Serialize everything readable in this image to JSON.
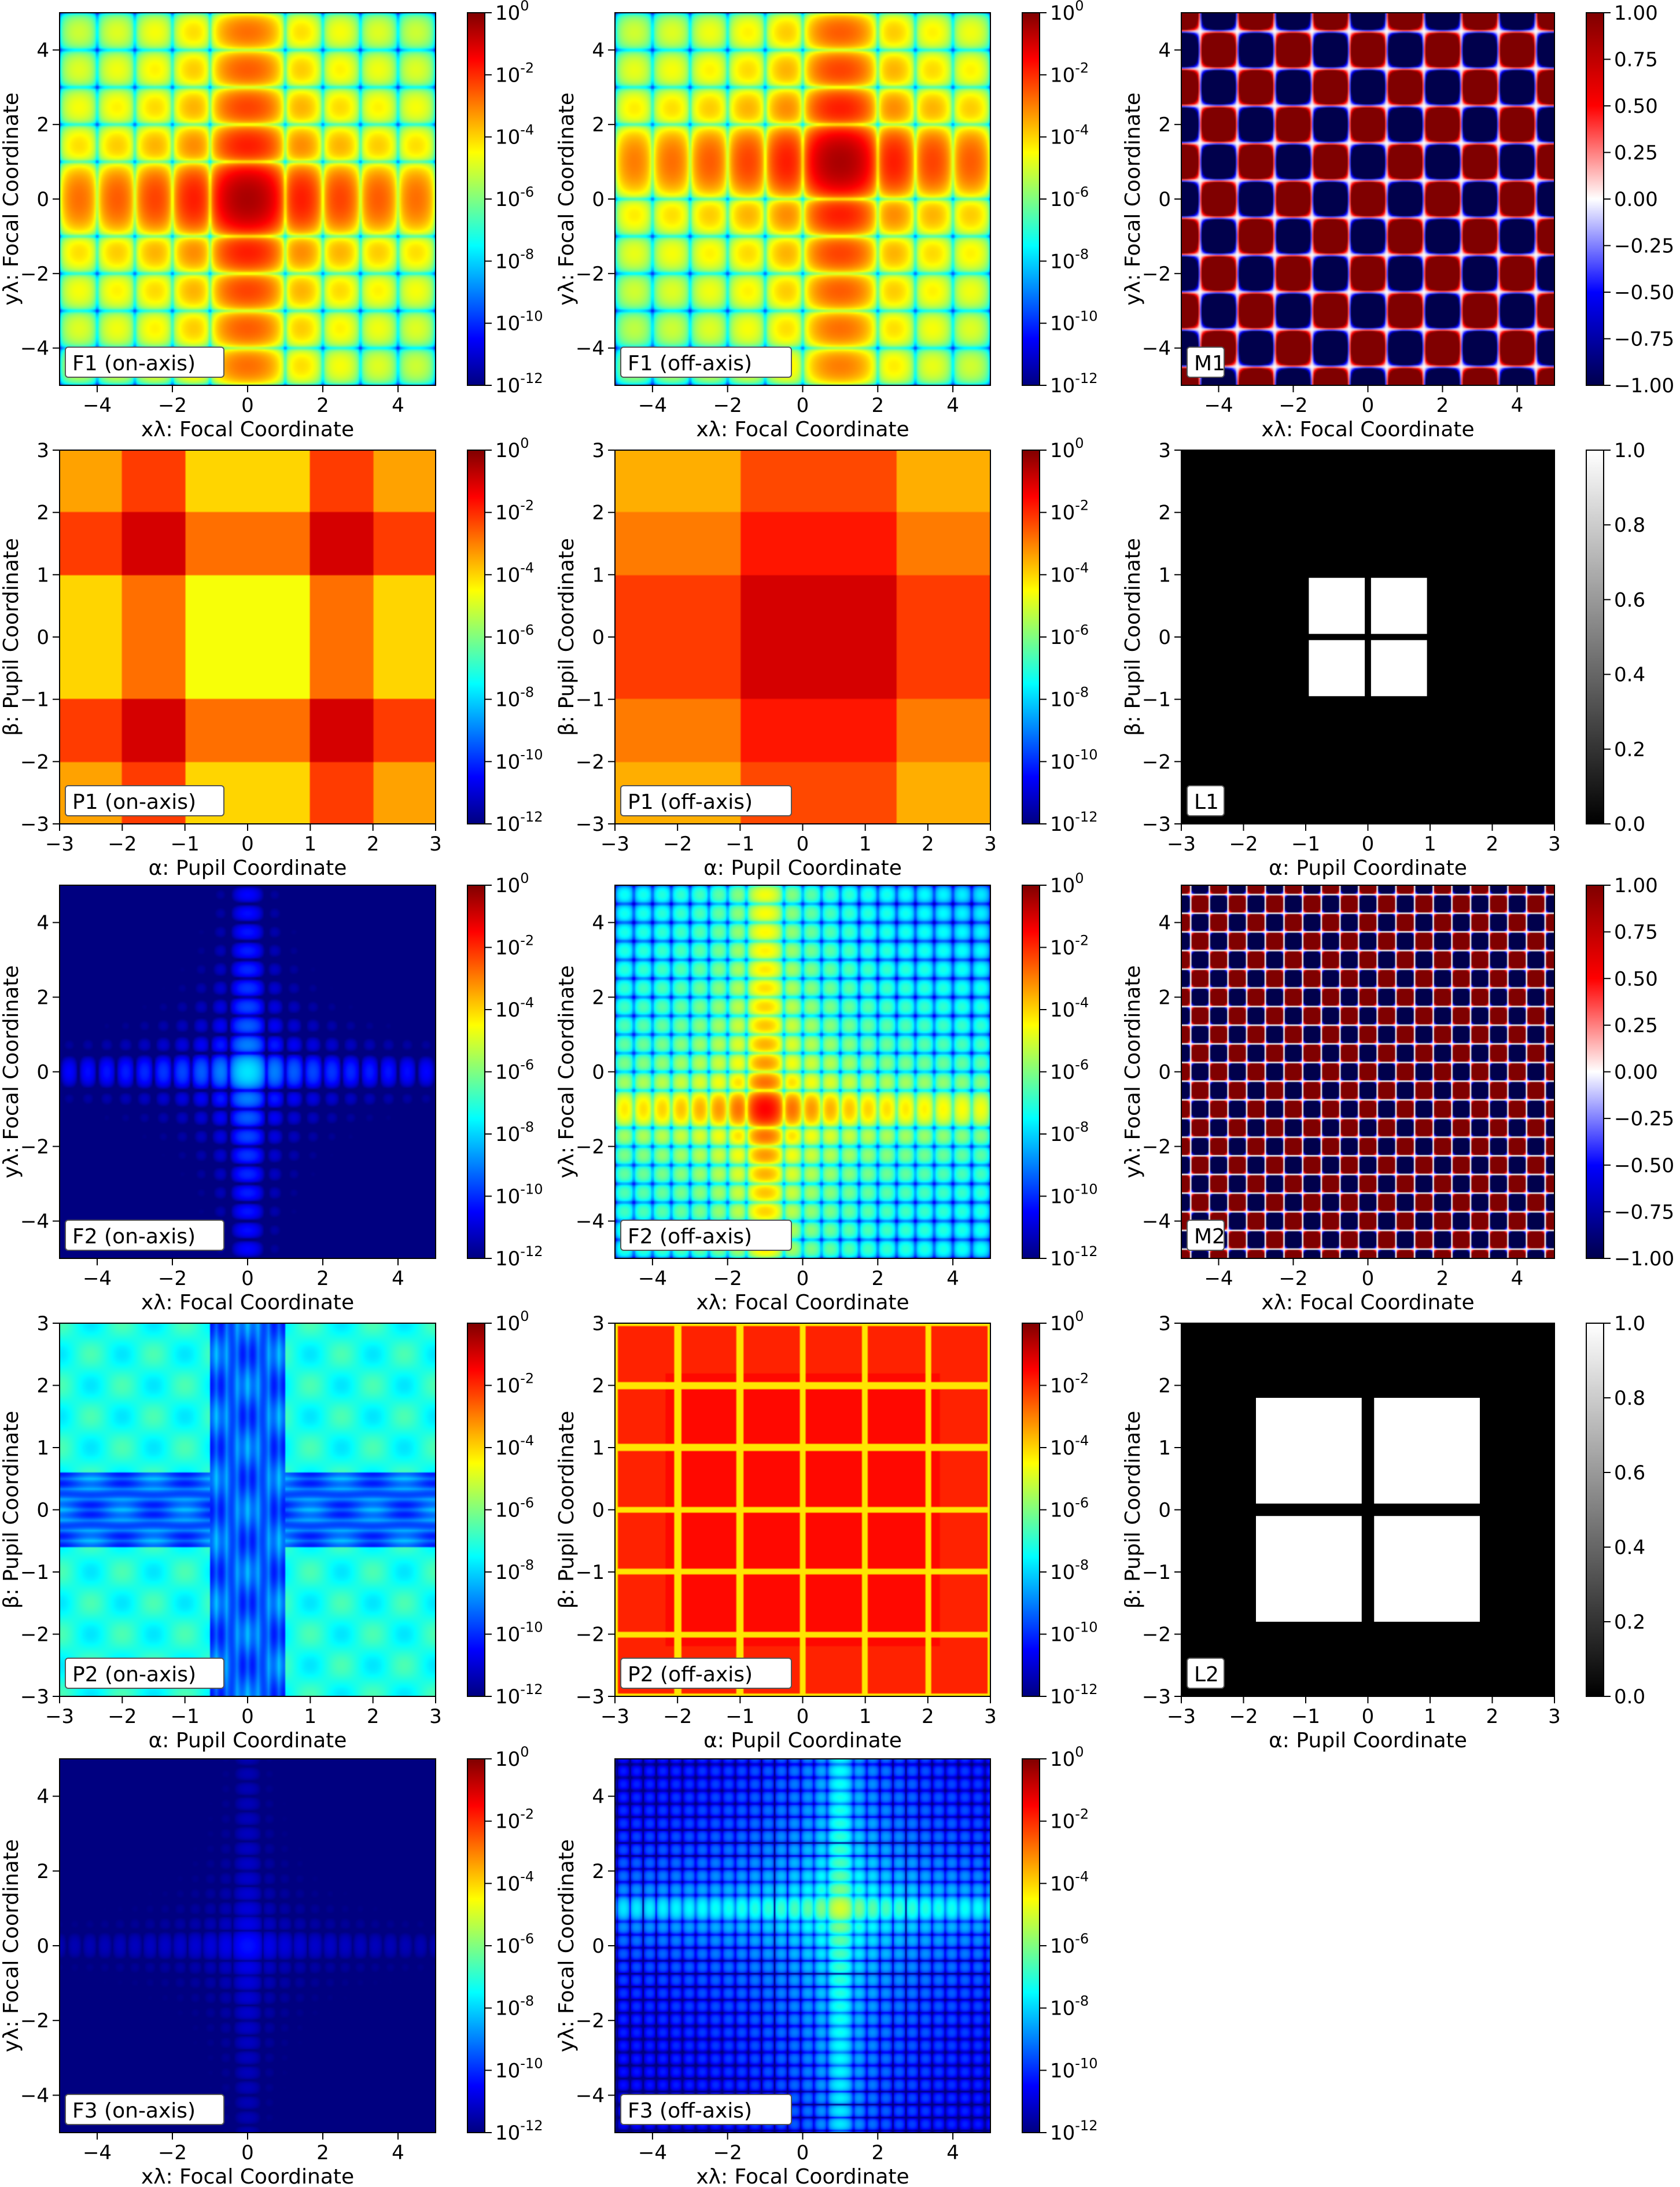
{
  "chart_data": [
    {
      "id": "F1on",
      "type": "heatmap",
      "label": "F1 (on-axis)",
      "xlabel": "xλ: Focal Coordinate",
      "ylabel": "yλ: Focal Coordinate",
      "xticks": [
        "−4",
        "−2",
        "0",
        "2",
        "4"
      ],
      "yticks": [
        "−4",
        "−2",
        "0",
        "2",
        "4"
      ],
      "xlim": [
        -5,
        5
      ],
      "ylim": [
        -5,
        5
      ],
      "colormap": "jet",
      "colorbar": {
        "scale": "log",
        "ticks": [
          [
            "0",
            "10",
            "0"
          ],
          [
            "1",
            "10",
            "-2"
          ],
          [
            "2",
            "10",
            "-4"
          ],
          [
            "3",
            "10",
            "-6"
          ],
          [
            "4",
            "10",
            "-8"
          ],
          [
            "5",
            "10",
            "-10"
          ],
          [
            "6",
            "10",
            "-12"
          ]
        ]
      },
      "pattern": {
        "kind": "sinc",
        "cx": 0,
        "cy": 0,
        "p": 1,
        "floor": -0.5
      }
    },
    {
      "id": "F1off",
      "type": "heatmap",
      "label": "F1 (off-axis)",
      "xlabel": "xλ: Focal Coordinate",
      "ylabel": "yλ: Focal Coordinate",
      "xticks": [
        "−4",
        "−2",
        "0",
        "2",
        "4"
      ],
      "yticks": [
        "−4",
        "−2",
        "0",
        "2",
        "4"
      ],
      "xlim": [
        -5,
        5
      ],
      "ylim": [
        -5,
        5
      ],
      "colormap": "jet",
      "colorbar": {
        "scale": "log",
        "ticks": [
          [
            "0",
            "10",
            "0"
          ],
          [
            "1",
            "10",
            "-2"
          ],
          [
            "2",
            "10",
            "-4"
          ],
          [
            "3",
            "10",
            "-6"
          ],
          [
            "4",
            "10",
            "-8"
          ],
          [
            "5",
            "10",
            "-10"
          ],
          [
            "6",
            "10",
            "-12"
          ]
        ]
      },
      "pattern": {
        "kind": "sinc",
        "cx": 1,
        "cy": 1,
        "p": 1,
        "floor": -0.5
      }
    },
    {
      "id": "M1",
      "type": "heatmap",
      "label": "M1",
      "xlabel": "xλ: Focal Coordinate",
      "ylabel": "yλ: Focal Coordinate",
      "xticks": [
        "−4",
        "−2",
        "0",
        "2",
        "4"
      ],
      "yticks": [
        "−4",
        "−2",
        "0",
        "2",
        "4"
      ],
      "xlim": [
        -5,
        5
      ],
      "ylim": [
        -5,
        5
      ],
      "colormap": "seismic",
      "colorbar": {
        "scale": "linear",
        "ticks": [
          [
            "0",
            "1.00"
          ],
          [
            "1",
            "0.75"
          ],
          [
            "2",
            "0.50"
          ],
          [
            "3",
            "0.25"
          ],
          [
            "4",
            "0.00"
          ],
          [
            "5",
            "−0.25"
          ],
          [
            "6",
            "−0.50"
          ],
          [
            "7",
            "−0.75"
          ],
          [
            "8",
            "−1.00"
          ]
        ]
      },
      "pattern": {
        "kind": "checker",
        "p": 1
      }
    },
    {
      "id": "P1on",
      "type": "heatmap",
      "label": "P1 (on-axis)",
      "xlabel": "α: Pupil Coordinate",
      "ylabel": "β: Pupil Coordinate",
      "xticks": [
        "−3",
        "−2",
        "−1",
        "0",
        "1",
        "2",
        "3"
      ],
      "yticks": [
        "−3",
        "−2",
        "−1",
        "0",
        "1",
        "2",
        "3"
      ],
      "xlim": [
        -3,
        3
      ],
      "ylim": [
        -3,
        3
      ],
      "colormap": "jet",
      "colorbar": {
        "scale": "log",
        "ticks": [
          [
            "0",
            "10",
            "0"
          ],
          [
            "1",
            "10",
            "-2"
          ],
          [
            "2",
            "10",
            "-4"
          ],
          [
            "3",
            "10",
            "-6"
          ],
          [
            "4",
            "10",
            "-8"
          ],
          [
            "5",
            "10",
            "-10"
          ],
          [
            "6",
            "10",
            "-12"
          ]
        ]
      },
      "pattern": {
        "kind": "pupil",
        "mode": "on",
        "floor": -5
      }
    },
    {
      "id": "P1off",
      "type": "heatmap",
      "label": "P1 (off-axis)",
      "xlabel": "α: Pupil Coordinate",
      "ylabel": "β: Pupil Coordinate",
      "xticks": [
        "−3",
        "−2",
        "−1",
        "0",
        "1",
        "2",
        "3"
      ],
      "yticks": [
        "−3",
        "−2",
        "−1",
        "0",
        "1",
        "2",
        "3"
      ],
      "xlim": [
        -3,
        3
      ],
      "ylim": [
        -3,
        3
      ],
      "colormap": "jet",
      "colorbar": {
        "scale": "log",
        "ticks": [
          [
            "0",
            "10",
            "0"
          ],
          [
            "1",
            "10",
            "-2"
          ],
          [
            "2",
            "10",
            "-4"
          ],
          [
            "3",
            "10",
            "-6"
          ],
          [
            "4",
            "10",
            "-8"
          ],
          [
            "5",
            "10",
            "-10"
          ],
          [
            "6",
            "10",
            "-12"
          ]
        ]
      },
      "pattern": {
        "kind": "pupil",
        "mode": "off",
        "floor": -5
      }
    },
    {
      "id": "L1",
      "type": "heatmap",
      "label": "L1",
      "xlabel": "α: Pupil Coordinate",
      "ylabel": "β: Pupil Coordinate",
      "xticks": [
        "−3",
        "−2",
        "−1",
        "0",
        "1",
        "2",
        "3"
      ],
      "yticks": [
        "−3",
        "−2",
        "−1",
        "0",
        "1",
        "2",
        "3"
      ],
      "xlim": [
        -3,
        3
      ],
      "ylim": [
        -3,
        3
      ],
      "colormap": "gray",
      "colorbar": {
        "scale": "linear",
        "ticks": [
          [
            "0",
            "1.0"
          ],
          [
            "1",
            "0.8"
          ],
          [
            "2",
            "0.6"
          ],
          [
            "3",
            "0.4"
          ],
          [
            "4",
            "0.2"
          ],
          [
            "5",
            "0.0"
          ]
        ]
      },
      "aperture": {
        "half_size": 0.95,
        "gap": 0.1
      }
    },
    {
      "id": "F2on",
      "type": "heatmap",
      "label": "F2 (on-axis)",
      "xlabel": "xλ: Focal Coordinate",
      "ylabel": "yλ: Focal Coordinate",
      "xticks": [
        "−4",
        "−2",
        "0",
        "2",
        "4"
      ],
      "yticks": [
        "−4",
        "−2",
        "0",
        "2",
        "4"
      ],
      "xlim": [
        -5,
        5
      ],
      "ylim": [
        -5,
        5
      ],
      "colormap": "jet",
      "colorbar": {
        "scale": "log",
        "ticks": [
          [
            "0",
            "10",
            "0"
          ],
          [
            "1",
            "10",
            "-2"
          ],
          [
            "2",
            "10",
            "-4"
          ],
          [
            "3",
            "10",
            "-6"
          ],
          [
            "4",
            "10",
            "-8"
          ],
          [
            "5",
            "10",
            "-10"
          ],
          [
            "6",
            "10",
            "-12"
          ]
        ]
      },
      "pattern": {
        "kind": "sinc",
        "cx": 0,
        "cy": 0,
        "p": 0.5,
        "floor": -7.8,
        "gain": 0.9
      }
    },
    {
      "id": "F2off",
      "type": "heatmap",
      "label": "F2 (off-axis)",
      "xlabel": "xλ: Focal Coordinate",
      "ylabel": "yλ: Focal Coordinate",
      "xticks": [
        "−4",
        "−2",
        "0",
        "2",
        "4"
      ],
      "yticks": [
        "−4",
        "−2",
        "0",
        "2",
        "4"
      ],
      "xlim": [
        -5,
        5
      ],
      "ylim": [
        -5,
        5
      ],
      "colormap": "jet",
      "colorbar": {
        "scale": "log",
        "ticks": [
          [
            "0",
            "10",
            "0"
          ],
          [
            "1",
            "10",
            "-2"
          ],
          [
            "2",
            "10",
            "-4"
          ],
          [
            "3",
            "10",
            "-6"
          ],
          [
            "4",
            "10",
            "-8"
          ],
          [
            "5",
            "10",
            "-10"
          ],
          [
            "6",
            "10",
            "-12"
          ]
        ]
      },
      "pattern": {
        "kind": "sinc",
        "cx": -1,
        "cy": -1,
        "p": 0.5,
        "floor": -1.5
      }
    },
    {
      "id": "M2",
      "type": "heatmap",
      "label": "M2",
      "xlabel": "xλ: Focal Coordinate",
      "ylabel": "yλ: Focal Coordinate",
      "xticks": [
        "−4",
        "−2",
        "0",
        "2",
        "4"
      ],
      "yticks": [
        "−4",
        "−2",
        "0",
        "2",
        "4"
      ],
      "xlim": [
        -5,
        5
      ],
      "ylim": [
        -5,
        5
      ],
      "colormap": "seismic",
      "colorbar": {
        "scale": "linear",
        "ticks": [
          [
            "0",
            "1.00"
          ],
          [
            "1",
            "0.75"
          ],
          [
            "2",
            "0.50"
          ],
          [
            "3",
            "0.25"
          ],
          [
            "4",
            "0.00"
          ],
          [
            "5",
            "−0.25"
          ],
          [
            "6",
            "−0.50"
          ],
          [
            "7",
            "−0.75"
          ],
          [
            "8",
            "−1.00"
          ]
        ]
      },
      "pattern": {
        "kind": "checker",
        "p": 0.5
      }
    },
    {
      "id": "P2on",
      "type": "heatmap",
      "label": "P2 (on-axis)",
      "xlabel": "α: Pupil Coordinate",
      "ylabel": "β: Pupil Coordinate",
      "xticks": [
        "−3",
        "−2",
        "−1",
        "0",
        "1",
        "2",
        "3"
      ],
      "yticks": [
        "−3",
        "−2",
        "−1",
        "0",
        "1",
        "2",
        "3"
      ],
      "xlim": [
        -3,
        3
      ],
      "ylim": [
        -3,
        3
      ],
      "colormap": "jet",
      "colorbar": {
        "scale": "log",
        "ticks": [
          [
            "0",
            "10",
            "0"
          ],
          [
            "1",
            "10",
            "-2"
          ],
          [
            "2",
            "10",
            "-4"
          ],
          [
            "3",
            "10",
            "-6"
          ],
          [
            "4",
            "10",
            "-8"
          ],
          [
            "5",
            "10",
            "-10"
          ],
          [
            "6",
            "10",
            "-12"
          ]
        ]
      },
      "pattern": {
        "kind": "p2on"
      }
    },
    {
      "id": "P2off",
      "type": "heatmap",
      "label": "P2 (off-axis)",
      "xlabel": "α: Pupil Coordinate",
      "ylabel": "β: Pupil Coordinate",
      "xticks": [
        "−3",
        "−2",
        "−1",
        "0",
        "1",
        "2",
        "3"
      ],
      "yticks": [
        "−3",
        "−2",
        "−1",
        "0",
        "1",
        "2",
        "3"
      ],
      "xlim": [
        -3,
        3
      ],
      "ylim": [
        -3,
        3
      ],
      "colormap": "jet",
      "colorbar": {
        "scale": "log",
        "ticks": [
          [
            "0",
            "10",
            "0"
          ],
          [
            "1",
            "10",
            "-2"
          ],
          [
            "2",
            "10",
            "-4"
          ],
          [
            "3",
            "10",
            "-6"
          ],
          [
            "4",
            "10",
            "-8"
          ],
          [
            "5",
            "10",
            "-10"
          ],
          [
            "6",
            "10",
            "-12"
          ]
        ]
      },
      "pattern": {
        "kind": "p2off"
      }
    },
    {
      "id": "L2",
      "type": "heatmap",
      "label": "L2",
      "xlabel": "α: Pupil Coordinate",
      "ylabel": "β: Pupil Coordinate",
      "xticks": [
        "−3",
        "−2",
        "−1",
        "0",
        "1",
        "2",
        "3"
      ],
      "yticks": [
        "−3",
        "−2",
        "−1",
        "0",
        "1",
        "2",
        "3"
      ],
      "xlim": [
        -3,
        3
      ],
      "ylim": [
        -3,
        3
      ],
      "colormap": "gray",
      "colorbar": {
        "scale": "linear",
        "ticks": [
          [
            "0",
            "1.0"
          ],
          [
            "1",
            "0.8"
          ],
          [
            "2",
            "0.6"
          ],
          [
            "3",
            "0.4"
          ],
          [
            "4",
            "0.2"
          ],
          [
            "5",
            "0.0"
          ]
        ]
      },
      "aperture": {
        "half_size": 1.8,
        "gap": 0.2
      }
    },
    {
      "id": "F3on",
      "type": "heatmap",
      "label": "F3 (on-axis)",
      "xlabel": "xλ: Focal Coordinate",
      "ylabel": "yλ: Focal Coordinate",
      "xticks": [
        "−4",
        "−2",
        "0",
        "2",
        "4"
      ],
      "yticks": [
        "−4",
        "−2",
        "0",
        "2",
        "4"
      ],
      "xlim": [
        -5,
        5
      ],
      "ylim": [
        -5,
        5
      ],
      "colormap": "jet",
      "colorbar": {
        "scale": "log",
        "ticks": [
          [
            "0",
            "10",
            "0"
          ],
          [
            "1",
            "10",
            "-2"
          ],
          [
            "2",
            "10",
            "-4"
          ],
          [
            "3",
            "10",
            "-6"
          ],
          [
            "4",
            "10",
            "-8"
          ],
          [
            "5",
            "10",
            "-10"
          ],
          [
            "6",
            "10",
            "-12"
          ]
        ]
      },
      "pattern": {
        "kind": "sinc",
        "cx": 0,
        "cy": 0,
        "p": 0.4,
        "floor": -10.3,
        "gain": 0.35
      }
    },
    {
      "id": "F3off",
      "type": "heatmap",
      "label": "F3 (off-axis)",
      "xlabel": "xλ: Focal Coordinate",
      "ylabel": "yλ: Focal Coordinate",
      "xticks": [
        "−4",
        "−2",
        "0",
        "2",
        "4"
      ],
      "yticks": [
        "−4",
        "−2",
        "0",
        "2",
        "4"
      ],
      "xlim": [
        -5,
        5
      ],
      "ylim": [
        -5,
        5
      ],
      "colormap": "jet",
      "colorbar": {
        "scale": "log",
        "ticks": [
          [
            "0",
            "10",
            "0"
          ],
          [
            "1",
            "10",
            "-2"
          ],
          [
            "2",
            "10",
            "-4"
          ],
          [
            "3",
            "10",
            "-6"
          ],
          [
            "4",
            "10",
            "-8"
          ],
          [
            "5",
            "10",
            "-10"
          ],
          [
            "6",
            "10",
            "-12"
          ]
        ]
      },
      "pattern": {
        "kind": "sinc",
        "cx": 1,
        "cy": 1,
        "p": 0.35,
        "floor": -5,
        "gain": 0.8
      }
    }
  ]
}
